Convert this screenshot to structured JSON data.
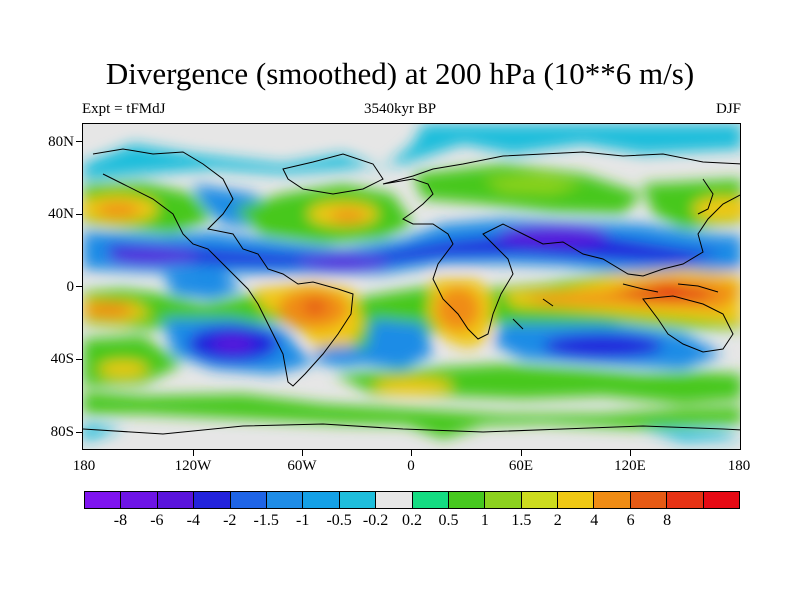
{
  "title": "Divergence (smoothed) at 200 hPa (10**6 m/s)",
  "subtitle_left": "Expt = tFMdJ",
  "subtitle_center": "3540kyr BP",
  "subtitle_right": "DJF",
  "lat_axis": {
    "labels": [
      "80N",
      "40N",
      "0",
      "40S",
      "80S"
    ],
    "values": [
      80,
      40,
      0,
      -40,
      -80
    ],
    "range": [
      -90,
      90
    ]
  },
  "lon_axis": {
    "labels": [
      "180",
      "120W",
      "60W",
      "0",
      "60E",
      "120E",
      "180"
    ],
    "values": [
      -180,
      -120,
      -60,
      0,
      60,
      120,
      180
    ],
    "range": [
      -180,
      180
    ]
  },
  "colorbar": {
    "colors": [
      "#7f14f0",
      "#6e14e6",
      "#5a14dc",
      "#2323dc",
      "#1e64e6",
      "#1e8ce6",
      "#14a0e6",
      "#1ebedc",
      "#e6e6e6",
      "#14dc82",
      "#46c81e",
      "#8cd21e",
      "#cddc1e",
      "#f0c814",
      "#f08c14",
      "#e65a14",
      "#e63214",
      "#e60a14"
    ],
    "labels": [
      "-8",
      "-6",
      "-4",
      "-2",
      "-1.5",
      "-1",
      "-0.5",
      "-0.2",
      "0.2",
      "0.5",
      "1",
      "1.5",
      "2",
      "4",
      "6",
      "8"
    ]
  },
  "colors": {
    "background": "#e6e6e6",
    "coastline": "#000000"
  }
}
